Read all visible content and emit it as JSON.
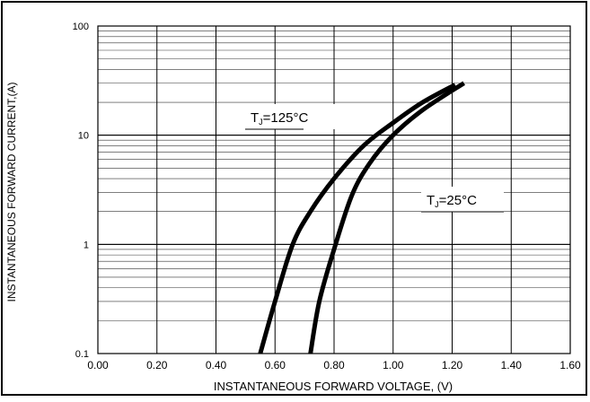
{
  "chart_data": {
    "type": "line",
    "xlabel": "INSTANTANEOUS FORWARD VOLTAGE, (V)",
    "ylabel": "INSTANTANEOUS FORWARD CURRENT,(A)",
    "xlim": [
      0.0,
      1.6
    ],
    "ylim": [
      0.1,
      100
    ],
    "yscale": "log",
    "grid": true,
    "x_ticks": [
      "0.00",
      "0.20",
      "0.40",
      "0.60",
      "0.80",
      "1.00",
      "1.20",
      "1.40",
      "1.60"
    ],
    "y_ticks": [
      "0.1",
      "1",
      "10",
      "100"
    ],
    "series": [
      {
        "name": "TJ=125°C",
        "label_main": "T",
        "label_sub": "J",
        "label_rest": "=125°C",
        "x": [
          0.55,
          0.6,
          0.66,
          0.72,
          0.8,
          0.9,
          1.0,
          1.1,
          1.21
        ],
        "y": [
          0.1,
          0.3,
          1.0,
          2.0,
          4.0,
          8.0,
          13.0,
          20.0,
          29.0
        ]
      },
      {
        "name": "TJ=25°C",
        "label_main": "T",
        "label_sub": "J",
        "label_rest": "=25°C",
        "x": [
          0.72,
          0.75,
          0.8,
          0.86,
          0.92,
          1.0,
          1.1,
          1.24
        ],
        "y": [
          0.1,
          0.3,
          0.9,
          2.8,
          5.5,
          10.0,
          17.0,
          30.0
        ]
      }
    ]
  }
}
